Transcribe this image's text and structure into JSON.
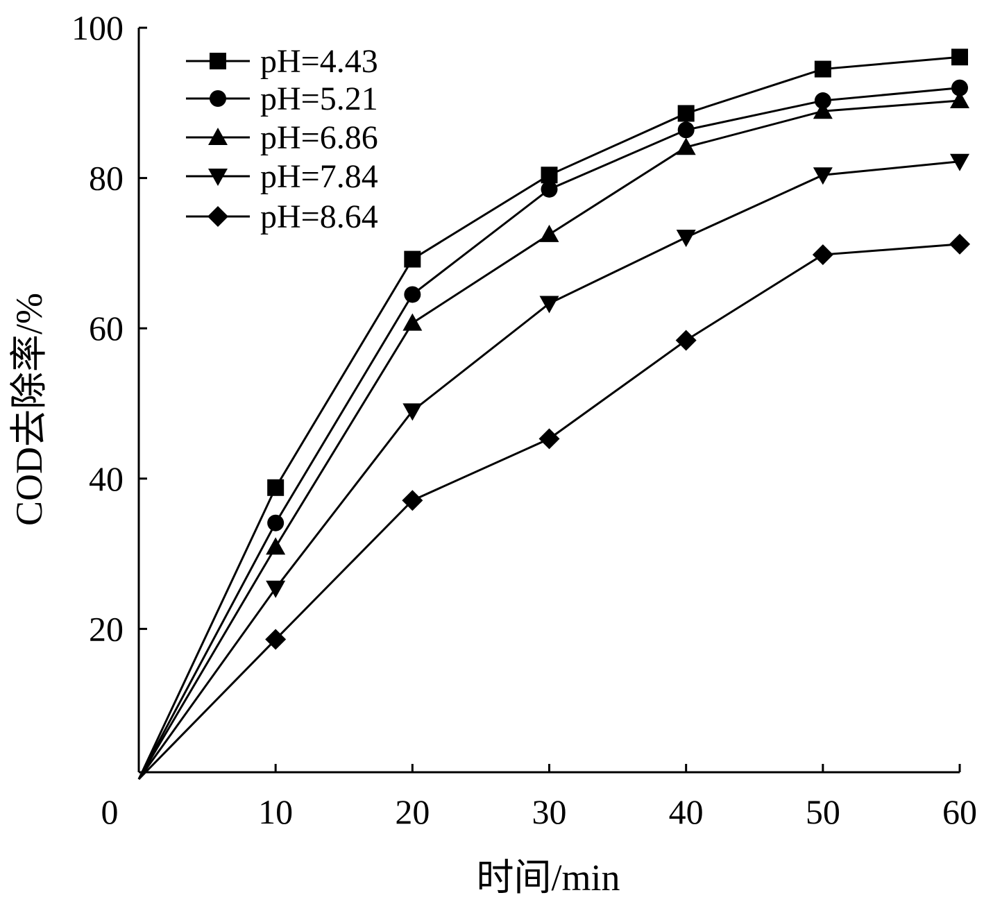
{
  "chart_data": {
    "type": "line",
    "title": "",
    "xlabel": "时间/min",
    "ylabel": "COD去除率/%",
    "xlim": [
      0,
      60
    ],
    "ylim": [
      0,
      100
    ],
    "x_ticks": [
      0,
      10,
      20,
      30,
      40,
      50,
      60
    ],
    "y_ticks": [
      20,
      40,
      60,
      80,
      100
    ],
    "origin_label": "0",
    "grid": false,
    "legend_position": "top-left",
    "x": [
      0,
      10,
      20,
      30,
      40,
      50,
      60
    ],
    "series": [
      {
        "name": "pH=4.43",
        "marker": "square",
        "values": [
          0,
          38.8,
          69.2,
          80.4,
          88.6,
          94.5,
          96.1
        ]
      },
      {
        "name": "pH=5.21",
        "marker": "circle",
        "values": [
          0,
          34.1,
          64.5,
          78.5,
          86.4,
          90.3,
          92.0
        ]
      },
      {
        "name": "pH=6.86",
        "marker": "triangle-up",
        "values": [
          0,
          30.9,
          60.7,
          72.5,
          84.1,
          88.9,
          90.3
        ]
      },
      {
        "name": "pH=7.84",
        "marker": "triangle-down",
        "values": [
          0,
          25.4,
          49.0,
          63.3,
          72.1,
          80.4,
          82.2
        ]
      },
      {
        "name": "pH=8.64",
        "marker": "diamond",
        "values": [
          0,
          18.6,
          37.1,
          45.3,
          58.4,
          69.8,
          71.2
        ]
      }
    ]
  }
}
